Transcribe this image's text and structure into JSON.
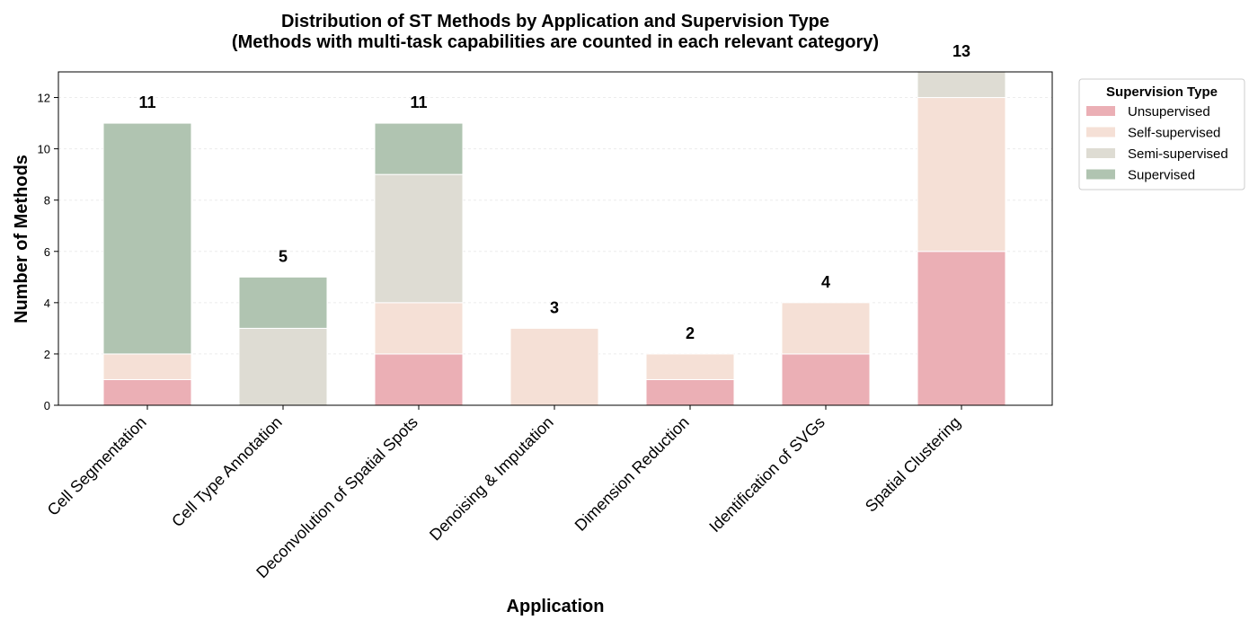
{
  "chart_data": {
    "type": "bar",
    "stacked": true,
    "title": "Distribution of ST Methods by Application and Supervision Type",
    "subtitle": "(Methods with multi-task capabilities are counted in each relevant category)",
    "xlabel": "Application",
    "ylabel": "Number of Methods",
    "ylim": [
      0,
      13
    ],
    "yticks": [
      0,
      2,
      4,
      6,
      8,
      10,
      12
    ],
    "grid": true,
    "categories": [
      "Cell Segmentation",
      "Cell Type Annotation",
      "Deconvolution of Spatial Spots",
      "Denoising & Imputation",
      "Dimension Reduction",
      "Identification of SVGs",
      "Spatial Clustering"
    ],
    "series": [
      {
        "name": "Unsupervised",
        "color": "#ebafb5",
        "values": [
          1,
          0,
          2,
          0,
          1,
          2,
          6
        ]
      },
      {
        "name": "Self-supervised",
        "color": "#f5e0d6",
        "values": [
          1,
          0,
          2,
          3,
          1,
          2,
          6
        ]
      },
      {
        "name": "Semi-supervised",
        "color": "#dedcd3",
        "values": [
          0,
          3,
          5,
          0,
          0,
          0,
          1
        ]
      },
      {
        "name": "Supervised",
        "color": "#b0c4b1",
        "values": [
          9,
          2,
          2,
          0,
          0,
          0,
          0
        ]
      }
    ],
    "totals": [
      11,
      5,
      11,
      3,
      2,
      4,
      13
    ],
    "legend": {
      "title": "Supervision Type",
      "position": "upper-right-outside"
    }
  }
}
